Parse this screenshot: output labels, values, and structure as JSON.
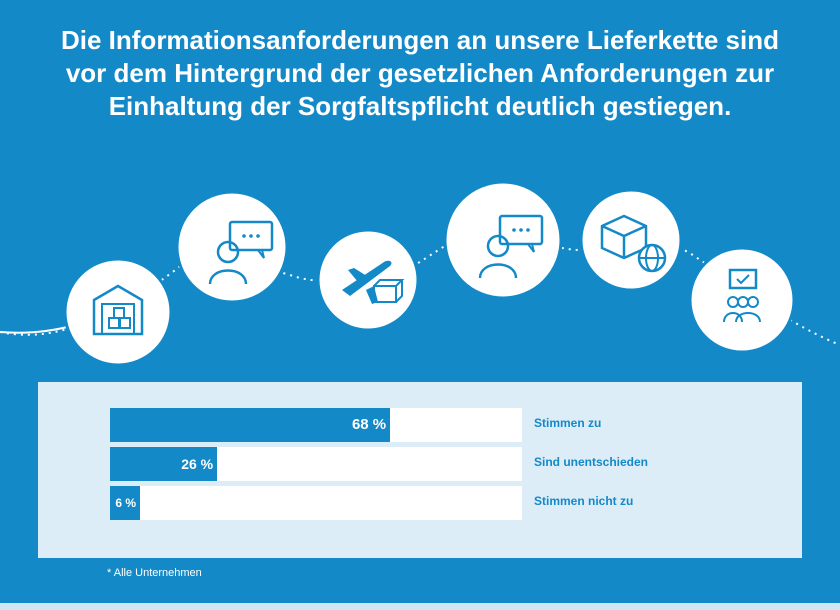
{
  "headline": "Die Informationsanforderungen an unsere Lieferkette sind vor dem Hintergrund der gesetzlichen Anforderungen zur Einhaltung der Sorgfaltspflicht deutlich gestiegen.",
  "icons": [
    "warehouse-icon",
    "chat-person-icon",
    "plane-parcel-icon",
    "chat-person-icon",
    "box-globe-icon",
    "team-meeting-icon"
  ],
  "chart_data": {
    "type": "bar",
    "orientation": "horizontal",
    "categories": [
      "Stimmen zu",
      "Sind unentschieden",
      "Stimmen nicht zu"
    ],
    "values": [
      68,
      26,
      6
    ],
    "value_labels": [
      "68 %",
      "26 %",
      "6 %"
    ],
    "xlim": [
      0,
      100
    ],
    "title": "",
    "xlabel": "",
    "ylabel": ""
  },
  "footnote": "* Alle Unternehmen",
  "colors": {
    "background": "#1489c8",
    "panel": "#dcedf8",
    "bar": "#1489c8",
    "track": "#ffffff",
    "label": "#1489c8"
  }
}
